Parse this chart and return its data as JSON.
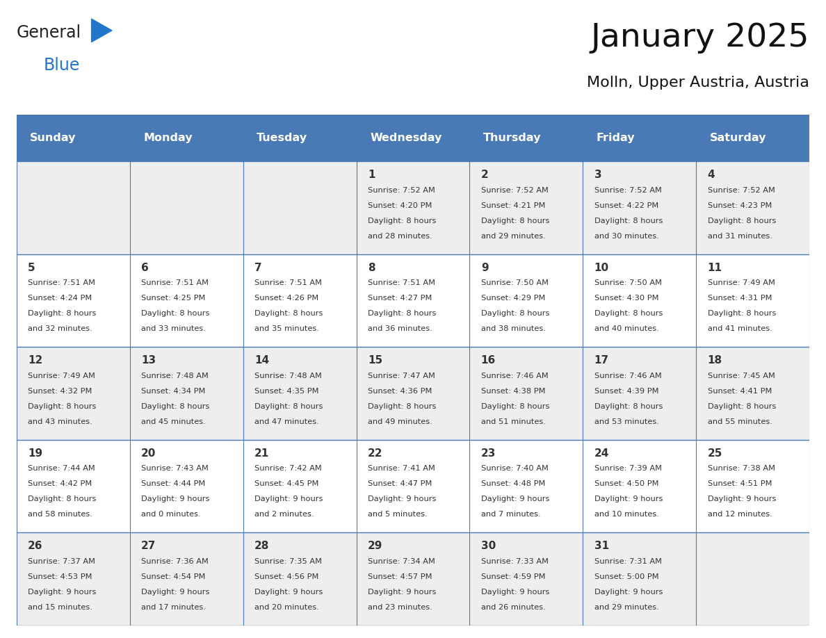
{
  "title": "January 2025",
  "subtitle": "Molln, Upper Austria, Austria",
  "header_bg": "#4a7ab5",
  "header_text_color": "#FFFFFF",
  "header_days": [
    "Sunday",
    "Monday",
    "Tuesday",
    "Wednesday",
    "Thursday",
    "Friday",
    "Saturday"
  ],
  "row_bg_even": "#EEEEEE",
  "row_bg_odd": "#FFFFFF",
  "border_color": "#4a7ab5",
  "text_color": "#333333",
  "logo_general_color": "#222222",
  "logo_blue_color": "#2277CC",
  "calendar_data": [
    [
      {
        "day": "",
        "sunrise": "",
        "sunset": "",
        "daylight": ""
      },
      {
        "day": "",
        "sunrise": "",
        "sunset": "",
        "daylight": ""
      },
      {
        "day": "",
        "sunrise": "",
        "sunset": "",
        "daylight": ""
      },
      {
        "day": "1",
        "sunrise": "7:52 AM",
        "sunset": "4:20 PM",
        "daylight": "8 hours\nand 28 minutes."
      },
      {
        "day": "2",
        "sunrise": "7:52 AM",
        "sunset": "4:21 PM",
        "daylight": "8 hours\nand 29 minutes."
      },
      {
        "day": "3",
        "sunrise": "7:52 AM",
        "sunset": "4:22 PM",
        "daylight": "8 hours\nand 30 minutes."
      },
      {
        "day": "4",
        "sunrise": "7:52 AM",
        "sunset": "4:23 PM",
        "daylight": "8 hours\nand 31 minutes."
      }
    ],
    [
      {
        "day": "5",
        "sunrise": "7:51 AM",
        "sunset": "4:24 PM",
        "daylight": "8 hours\nand 32 minutes."
      },
      {
        "day": "6",
        "sunrise": "7:51 AM",
        "sunset": "4:25 PM",
        "daylight": "8 hours\nand 33 minutes."
      },
      {
        "day": "7",
        "sunrise": "7:51 AM",
        "sunset": "4:26 PM",
        "daylight": "8 hours\nand 35 minutes."
      },
      {
        "day": "8",
        "sunrise": "7:51 AM",
        "sunset": "4:27 PM",
        "daylight": "8 hours\nand 36 minutes."
      },
      {
        "day": "9",
        "sunrise": "7:50 AM",
        "sunset": "4:29 PM",
        "daylight": "8 hours\nand 38 minutes."
      },
      {
        "day": "10",
        "sunrise": "7:50 AM",
        "sunset": "4:30 PM",
        "daylight": "8 hours\nand 40 minutes."
      },
      {
        "day": "11",
        "sunrise": "7:49 AM",
        "sunset": "4:31 PM",
        "daylight": "8 hours\nand 41 minutes."
      }
    ],
    [
      {
        "day": "12",
        "sunrise": "7:49 AM",
        "sunset": "4:32 PM",
        "daylight": "8 hours\nand 43 minutes."
      },
      {
        "day": "13",
        "sunrise": "7:48 AM",
        "sunset": "4:34 PM",
        "daylight": "8 hours\nand 45 minutes."
      },
      {
        "day": "14",
        "sunrise": "7:48 AM",
        "sunset": "4:35 PM",
        "daylight": "8 hours\nand 47 minutes."
      },
      {
        "day": "15",
        "sunrise": "7:47 AM",
        "sunset": "4:36 PM",
        "daylight": "8 hours\nand 49 minutes."
      },
      {
        "day": "16",
        "sunrise": "7:46 AM",
        "sunset": "4:38 PM",
        "daylight": "8 hours\nand 51 minutes."
      },
      {
        "day": "17",
        "sunrise": "7:46 AM",
        "sunset": "4:39 PM",
        "daylight": "8 hours\nand 53 minutes."
      },
      {
        "day": "18",
        "sunrise": "7:45 AM",
        "sunset": "4:41 PM",
        "daylight": "8 hours\nand 55 minutes."
      }
    ],
    [
      {
        "day": "19",
        "sunrise": "7:44 AM",
        "sunset": "4:42 PM",
        "daylight": "8 hours\nand 58 minutes."
      },
      {
        "day": "20",
        "sunrise": "7:43 AM",
        "sunset": "4:44 PM",
        "daylight": "9 hours\nand 0 minutes."
      },
      {
        "day": "21",
        "sunrise": "7:42 AM",
        "sunset": "4:45 PM",
        "daylight": "9 hours\nand 2 minutes."
      },
      {
        "day": "22",
        "sunrise": "7:41 AM",
        "sunset": "4:47 PM",
        "daylight": "9 hours\nand 5 minutes."
      },
      {
        "day": "23",
        "sunrise": "7:40 AM",
        "sunset": "4:48 PM",
        "daylight": "9 hours\nand 7 minutes."
      },
      {
        "day": "24",
        "sunrise": "7:39 AM",
        "sunset": "4:50 PM",
        "daylight": "9 hours\nand 10 minutes."
      },
      {
        "day": "25",
        "sunrise": "7:38 AM",
        "sunset": "4:51 PM",
        "daylight": "9 hours\nand 12 minutes."
      }
    ],
    [
      {
        "day": "26",
        "sunrise": "7:37 AM",
        "sunset": "4:53 PM",
        "daylight": "9 hours\nand 15 minutes."
      },
      {
        "day": "27",
        "sunrise": "7:36 AM",
        "sunset": "4:54 PM",
        "daylight": "9 hours\nand 17 minutes."
      },
      {
        "day": "28",
        "sunrise": "7:35 AM",
        "sunset": "4:56 PM",
        "daylight": "9 hours\nand 20 minutes."
      },
      {
        "day": "29",
        "sunrise": "7:34 AM",
        "sunset": "4:57 PM",
        "daylight": "9 hours\nand 23 minutes."
      },
      {
        "day": "30",
        "sunrise": "7:33 AM",
        "sunset": "4:59 PM",
        "daylight": "9 hours\nand 26 minutes."
      },
      {
        "day": "31",
        "sunrise": "7:31 AM",
        "sunset": "5:00 PM",
        "daylight": "9 hours\nand 29 minutes."
      },
      {
        "day": "",
        "sunrise": "",
        "sunset": "",
        "daylight": ""
      }
    ]
  ]
}
